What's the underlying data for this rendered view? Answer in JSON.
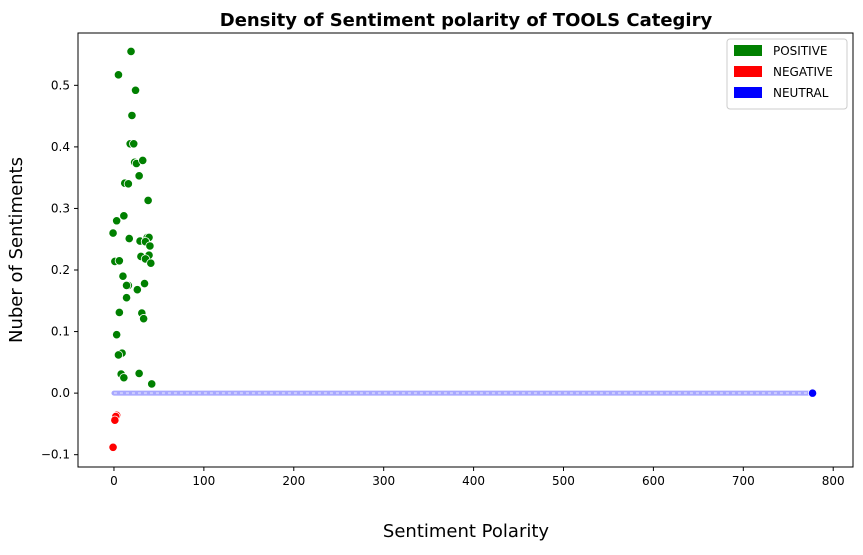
{
  "chart_data": {
    "type": "scatter",
    "title": "Density of Sentiment polarity of TOOLS Categiry",
    "xlabel": "Sentiment Polarity",
    "ylabel": "Nuber of Sentiments",
    "xlim": [
      -40,
      822
    ],
    "ylim": [
      -0.12,
      0.585
    ],
    "xticks": [
      0,
      100,
      200,
      300,
      400,
      500,
      600,
      700,
      800
    ],
    "yticks": [
      -0.1,
      0.0,
      0.1,
      0.2,
      0.3,
      0.4,
      0.5
    ],
    "ytick_labels": [
      "−0.1",
      "0.0",
      "0.1",
      "0.2",
      "0.3",
      "0.4",
      "0.5"
    ],
    "grid": false,
    "legend_position": "top-right",
    "legend": [
      {
        "label": "POSITIVE",
        "color": "#008000"
      },
      {
        "label": "NEGATIVE",
        "color": "#ff0000"
      },
      {
        "label": "NEUTRAL",
        "color": "#0000ff"
      }
    ],
    "series": [
      {
        "name": "POSITIVE",
        "color": "#008000",
        "points": [
          [
            19,
            0.555
          ],
          [
            5,
            0.517
          ],
          [
            24,
            0.492
          ],
          [
            20,
            0.451
          ],
          [
            18,
            0.405
          ],
          [
            22,
            0.405
          ],
          [
            23,
            0.375
          ],
          [
            25,
            0.373
          ],
          [
            32,
            0.378
          ],
          [
            28,
            0.353
          ],
          [
            12,
            0.341
          ],
          [
            16,
            0.34
          ],
          [
            38,
            0.313
          ],
          [
            11,
            0.288
          ],
          [
            3,
            0.28
          ],
          [
            -1,
            0.26
          ],
          [
            17,
            0.251
          ],
          [
            37,
            0.253
          ],
          [
            39,
            0.253
          ],
          [
            29,
            0.247
          ],
          [
            35,
            0.246
          ],
          [
            40,
            0.239
          ],
          [
            1,
            0.214
          ],
          [
            6,
            0.215
          ],
          [
            39,
            0.224
          ],
          [
            30,
            0.222
          ],
          [
            35,
            0.218
          ],
          [
            41,
            0.211
          ],
          [
            10,
            0.19
          ],
          [
            34,
            0.178
          ],
          [
            16,
            0.175
          ],
          [
            14,
            0.175
          ],
          [
            26,
            0.168
          ],
          [
            14,
            0.155
          ],
          [
            6,
            0.131
          ],
          [
            31,
            0.13
          ],
          [
            33,
            0.121
          ],
          [
            3,
            0.095
          ],
          [
            9,
            0.065
          ],
          [
            5,
            0.062
          ],
          [
            28,
            0.032
          ],
          [
            8,
            0.031
          ],
          [
            11,
            0.025
          ],
          [
            42,
            0.015
          ]
        ]
      },
      {
        "name": "NEGATIVE",
        "color": "#ff0000",
        "points": [
          [
            3,
            -0.036
          ],
          [
            2,
            -0.038
          ],
          [
            1,
            -0.044
          ],
          [
            -1,
            -0.088
          ]
        ]
      },
      {
        "name": "NEUTRAL",
        "color": "#0000ff",
        "line": {
          "x_from": 0,
          "x_to": 777,
          "y": 0.0
        },
        "endpoint": [
          777,
          0.0
        ]
      }
    ]
  }
}
